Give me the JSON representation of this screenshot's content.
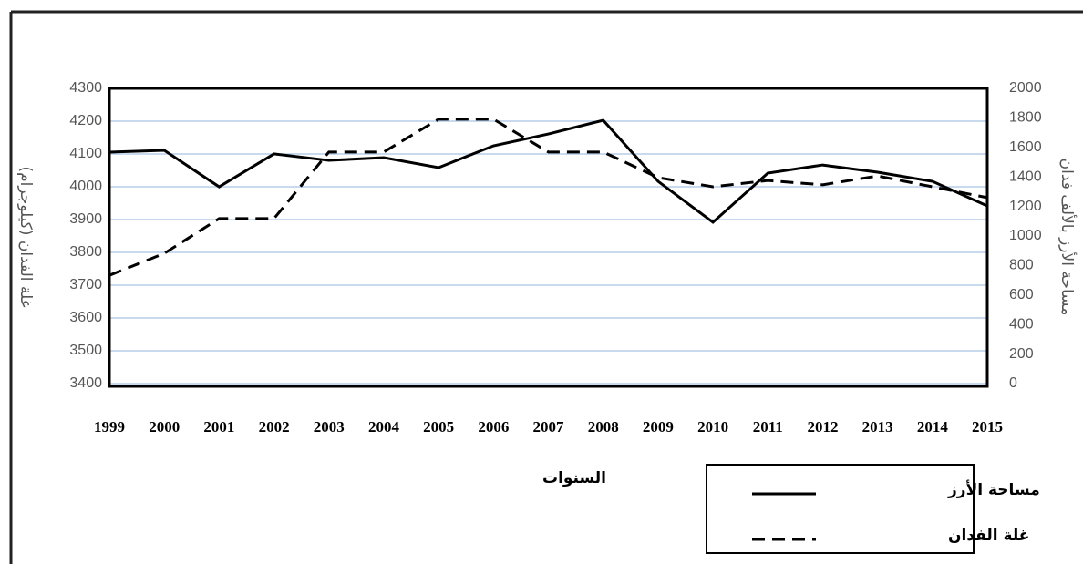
{
  "chart_data": {
    "type": "line",
    "x_label": "السنوات",
    "y_label": "غلة الفدان (كيلوجرام)",
    "y2_label": "مساحة الأرز بالألف فدان",
    "categories": [
      "1999",
      "2000",
      "2001",
      "2002",
      "2003",
      "2004",
      "2005",
      "2006",
      "2007",
      "2008",
      "2009",
      "2010",
      "2011",
      "2012",
      "2013",
      "2014",
      "2015"
    ],
    "series": [
      {
        "name": "مساحة الأرز",
        "color": "#000000",
        "dash": "solid",
        "axis": "y2",
        "values": [
          1568,
          1580,
          1333,
          1556,
          1512,
          1531,
          1463,
          1611,
          1691,
          1784,
          1370,
          1093,
          1426,
          1481,
          1432,
          1370,
          1204
        ]
      },
      {
        "name": "غلة الفدان",
        "color": "#000000",
        "dash": "dashed",
        "values": [
          3730,
          3797,
          3903,
          3903,
          4106,
          4106,
          4206,
          4206,
          4106,
          4106,
          4028,
          4000,
          4019,
          4006,
          4033,
          4000,
          3967
        ]
      }
    ],
    "ylim": [
      3400,
      4300
    ],
    "yticks": [
      3400,
      3500,
      3600,
      3700,
      3800,
      3900,
      4000,
      4100,
      4200,
      4300
    ],
    "y2lim": [
      0,
      2000
    ],
    "y2ticks": [
      0,
      200,
      400,
      600,
      800,
      1000,
      1200,
      1400,
      1600,
      1800,
      2000
    ],
    "grid": true
  }
}
